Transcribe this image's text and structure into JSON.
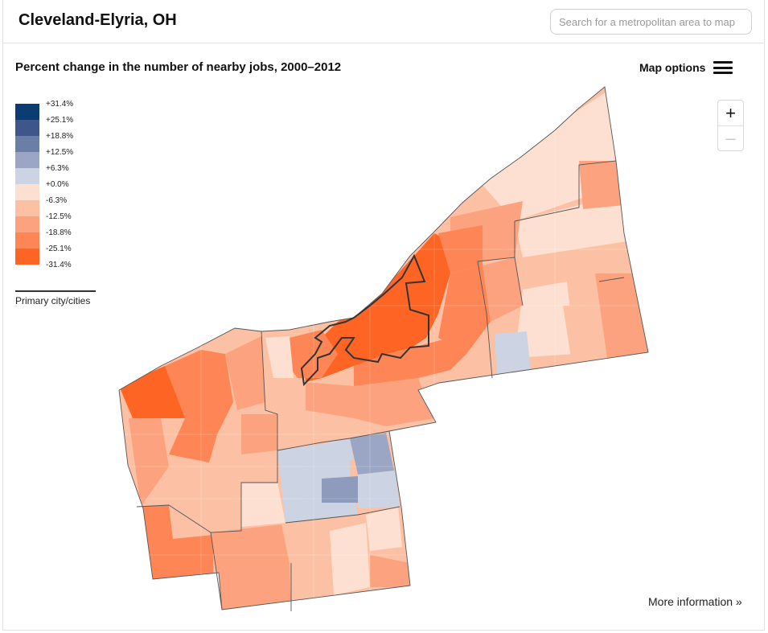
{
  "header": {
    "title": "Cleveland-Elyria, OH",
    "search_placeholder": "Search for a metropolitan area to map"
  },
  "map": {
    "subtitle": "Percent change in the number of nearby jobs, 2000–2012",
    "options_label": "Map options",
    "zoom_in_symbol": "+",
    "zoom_out_symbol": "–",
    "more_info": "More information »"
  },
  "legend": {
    "bins": [
      {
        "label": "+31.4%",
        "color": "#0b3c72"
      },
      {
        "label": "+25.1%",
        "color": "#3e5689"
      },
      {
        "label": "+18.8%",
        "color": "#6b7ea6"
      },
      {
        "label": "+12.5%",
        "color": "#9aa6c4"
      },
      {
        "label": "+6.3%",
        "color": "#ccd3e2"
      },
      {
        "label": "+0.0%",
        "color": "#fde0d2"
      },
      {
        "label": "-6.3%",
        "color": "#fcc1a4"
      },
      {
        "label": "-12.5%",
        "color": "#fca27e"
      },
      {
        "label": "-18.8%",
        "color": "#fd8556"
      },
      {
        "label": "-25.1%",
        "color": "#fe6424"
      },
      {
        "label": "-31.4%",
        "color": ""
      }
    ],
    "primary_city_label": "Primary city/cities"
  },
  "colors": {
    "boundary": "#555555",
    "city_outline": "#333333"
  }
}
